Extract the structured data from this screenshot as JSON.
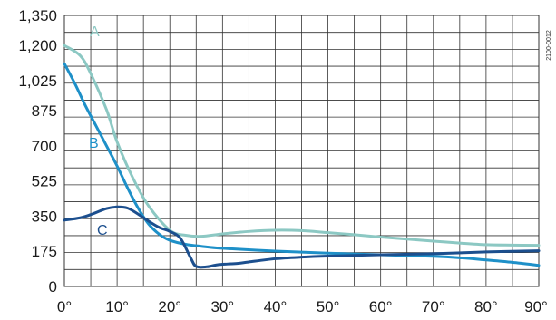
{
  "figure_code": "2100-0012",
  "chart_data": {
    "type": "line",
    "title": "",
    "xlabel": "",
    "ylabel": "",
    "xlim": [
      0,
      90
    ],
    "ylim": [
      0,
      1350
    ],
    "xticks": [
      0,
      10,
      20,
      30,
      40,
      50,
      60,
      70,
      80,
      90
    ],
    "xtick_labels": [
      "0°",
      "10°",
      "20°",
      "30°",
      "40°",
      "50°",
      "60°",
      "70°",
      "80°",
      "90°"
    ],
    "yticks": [
      0,
      175,
      350,
      525,
      700,
      875,
      1025,
      1200,
      1350
    ],
    "ytick_labels": [
      "0",
      "175",
      "350",
      "525",
      "700",
      "875",
      "1,025",
      "1,200",
      "1,350"
    ],
    "grid": true,
    "series": [
      {
        "name": "A",
        "color": "#8cc8c3",
        "x": [
          0,
          3,
          5,
          8,
          10,
          13,
          16,
          20,
          23,
          26,
          30,
          35,
          40,
          45,
          50,
          55,
          60,
          65,
          70,
          75,
          80,
          85,
          90
        ],
        "y": [
          1200,
          1150,
          1060,
          880,
          720,
          540,
          400,
          280,
          255,
          250,
          262,
          274,
          280,
          278,
          268,
          258,
          246,
          236,
          226,
          216,
          208,
          206,
          205
        ]
      },
      {
        "name": "B",
        "color": "#1e90c8",
        "x": [
          0,
          2,
          4,
          6,
          8,
          10,
          12,
          14,
          16,
          18,
          20,
          23,
          26,
          30,
          40,
          50,
          60,
          70,
          75,
          80,
          85,
          90
        ],
        "y": [
          1110,
          1010,
          900,
          800,
          700,
          600,
          490,
          390,
          310,
          260,
          230,
          210,
          200,
          190,
          176,
          166,
          158,
          150,
          143,
          132,
          120,
          105
        ]
      },
      {
        "name": "C",
        "color": "#1c4f8e",
        "x": [
          0,
          3,
          5,
          8,
          10,
          12,
          14,
          16,
          18,
          20,
          22,
          24,
          25,
          27,
          29,
          31,
          33,
          35,
          40,
          45,
          50,
          60,
          70,
          80,
          90
        ],
        "y": [
          330,
          342,
          358,
          388,
          396,
          390,
          360,
          325,
          294,
          274,
          240,
          140,
          100,
          98,
          108,
          112,
          115,
          122,
          138,
          146,
          151,
          158,
          163,
          172,
          178
        ]
      }
    ]
  }
}
